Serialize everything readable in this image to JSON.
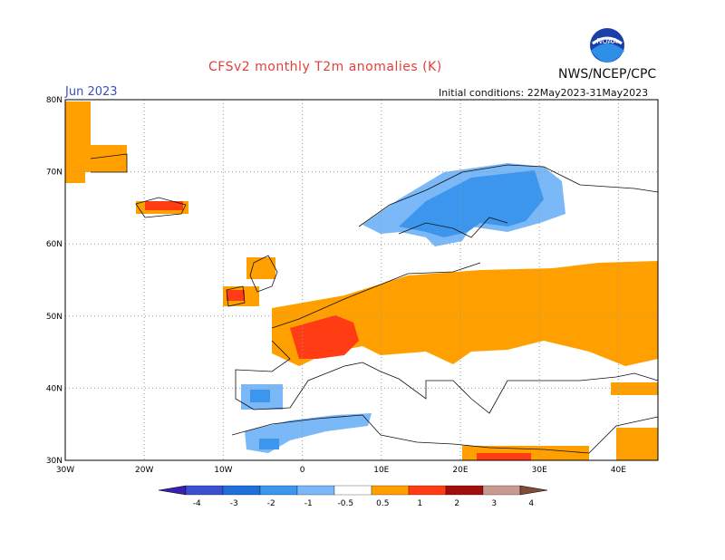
{
  "header": {
    "title": "CFSv2 monthly T2m anomalies (K)",
    "agency": "NWS/NCEP/CPC",
    "period": "Jun 2023",
    "initial_conditions": "Initial conditions: 22May2023-31May2023",
    "logo_text": "NOAA"
  },
  "map": {
    "lon_range": [
      -30,
      45
    ],
    "lat_range": [
      30,
      80
    ],
    "lat_ticks": [
      {
        "value": 80,
        "label": "80N"
      },
      {
        "value": 70,
        "label": "70N"
      },
      {
        "value": 60,
        "label": "60N"
      },
      {
        "value": 50,
        "label": "50N"
      },
      {
        "value": 40,
        "label": "40N"
      },
      {
        "value": 30,
        "label": "30N"
      }
    ],
    "lon_ticks": [
      {
        "value": -30,
        "label": "30W"
      },
      {
        "value": -20,
        "label": "20W"
      },
      {
        "value": -10,
        "label": "10W"
      },
      {
        "value": 0,
        "label": "0"
      },
      {
        "value": 10,
        "label": "10E"
      },
      {
        "value": 20,
        "label": "20E"
      },
      {
        "value": 30,
        "label": "30E"
      },
      {
        "value": 40,
        "label": "40E"
      }
    ],
    "grid": true
  },
  "legend": {
    "labels": [
      "-4",
      "-3",
      "-2",
      "-1",
      "-0.5",
      "0.5",
      "1",
      "2",
      "3",
      "4"
    ],
    "colors": [
      "#3b1fb0",
      "#3c4fd0",
      "#1e6fd8",
      "#3c96ee",
      "#7ab8f8",
      "#ffffff",
      "#ffa000",
      "#ff3c14",
      "#a00e0e",
      "#c89a90",
      "#804c38"
    ]
  },
  "colors": {
    "orange": "#ffa000",
    "red": "#ff3c14",
    "dark_red": "#a00e0e",
    "light_blue": "#7ab8f8",
    "blue": "#3c96ee"
  }
}
